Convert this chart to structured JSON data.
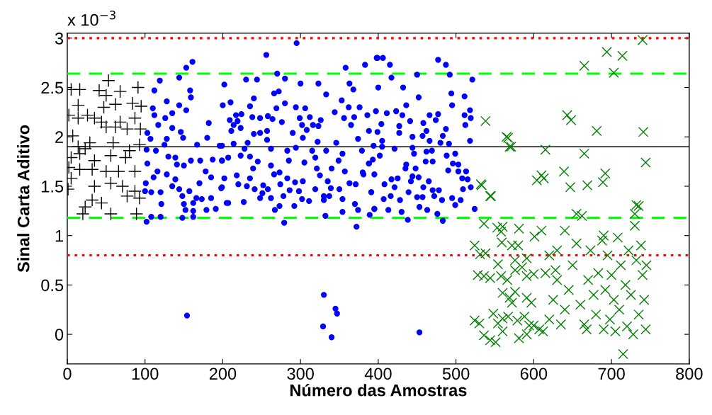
{
  "chart_data": {
    "type": "scatter",
    "xlabel": "Número das Amostras",
    "ylabel": "Sinal Carta Aditivo",
    "annotations": [
      "x 10$^{−3}$"
    ],
    "xlim": [
      0,
      800
    ],
    "xticks": [
      0,
      100,
      200,
      300,
      400,
      500,
      600,
      700,
      800
    ],
    "ylim": [
      -0.3,
      3.05
    ],
    "yticks": [
      0,
      0.5,
      1,
      1.5,
      2,
      2.5,
      3
    ],
    "grid": false,
    "legend": false,
    "ref_lines": [
      {
        "axis": "y",
        "value": 3.0,
        "color": "#ff0000",
        "line_style": "dotted"
      },
      {
        "axis": "y",
        "value": 0.8,
        "color": "#ff0000",
        "line_style": "dotted"
      },
      {
        "axis": "y",
        "value": 2.64,
        "color": "#00ff00",
        "line_style": "dashed"
      },
      {
        "axis": "y",
        "value": 1.18,
        "color": "#00ff00",
        "line_style": "dashed"
      },
      {
        "axis": "y",
        "value": 1.9,
        "color": "#000000",
        "line_style": "solid"
      }
    ],
    "series": [
      {
        "color": "#000000",
        "marker": "plus",
        "x": [
          53,
          5,
          16,
          41,
          68,
          91,
          50,
          14,
          47,
          62,
          84,
          95,
          2,
          26,
          35,
          44,
          68,
          87,
          14,
          50,
          62,
          77,
          94,
          7,
          29,
          14,
          23,
          59,
          80,
          93,
          5,
          16,
          35,
          56,
          75,
          2,
          16,
          32,
          50,
          66,
          87,
          5,
          35,
          56,
          71,
          87,
          1,
          32,
          44,
          23,
          56,
          20,
          89,
          77,
          93
        ],
        "values": [
          2.57,
          2.48,
          2.48,
          2.47,
          2.46,
          2.5,
          2.42,
          2.32,
          2.3,
          2.33,
          2.34,
          2.31,
          2.22,
          2.22,
          2.19,
          2.15,
          2.15,
          2.19,
          2.19,
          2.1,
          2.1,
          2.08,
          2.08,
          2.01,
          1.94,
          1.9,
          1.88,
          1.94,
          1.86,
          1.92,
          1.79,
          1.83,
          1.76,
          1.81,
          1.79,
          1.69,
          1.67,
          1.67,
          1.65,
          1.65,
          1.65,
          1.58,
          1.5,
          1.53,
          1.5,
          1.45,
          1.47,
          1.36,
          1.33,
          1.29,
          1.22,
          1.22,
          1.22,
          1.4,
          1.38
        ]
      },
      {
        "color": "#0000ff",
        "marker": "circle",
        "x": [
          161,
          153,
          144,
          119,
          112,
          158,
          159,
          128,
          110,
          144,
          153,
          112,
          126,
          135,
          117,
          135,
          182,
          103,
          146,
          128,
          149,
          107,
          125,
          167,
          180,
          196,
          102,
          114,
          130,
          139,
          159,
          171,
          187,
          199,
          103,
          141,
          150,
          116,
          178,
          111,
          128,
          185,
          101,
          139,
          135,
          144,
          170,
          199,
          108,
          120,
          157,
          166,
          148,
          173,
          185,
          100,
          121,
          150,
          162,
          152,
          162,
          179,
          191,
          205,
          102,
          108,
          120,
          148,
          162,
          295,
          256,
          399,
          383,
          358,
          270,
          280,
          230,
          244,
          300,
          323,
          363,
          202,
          368,
          272,
          333,
          266,
          240,
          353,
          210,
          280,
          200,
          235,
          269,
          294,
          306,
          362,
          376,
          344,
          217,
          224,
          238,
          248,
          258,
          299,
          312,
          326,
          356,
          369,
          386,
          209,
          219,
          264,
          276,
          214,
          302,
          316,
          323,
          365,
          223,
          211,
          257,
          308,
          388,
          240,
          290,
          248,
          374,
          232,
          214,
          257,
          303,
          322,
          346,
          199,
          228,
          262,
          283,
          294,
          315,
          333,
          354,
          379,
          207,
          223,
          235,
          199,
          245,
          285,
          305,
          319,
          349,
          388,
          239,
          262,
          321,
          340,
          357,
          380,
          218,
          266,
          273,
          325,
          202,
          235,
          283,
          293,
          303,
          335,
          220,
          231,
          252,
          274,
          363,
          371,
          198,
          241,
          258,
          286,
          298,
          319,
          339,
          350,
          391,
          251,
          278,
          330,
          337,
          248,
          262,
          302,
          311,
          330,
          354,
          207,
          227,
          273,
          267,
          292,
          370,
          354,
          374,
          395,
          332,
          389,
          279,
          372,
          398,
          406,
          415,
          477,
          487,
          417,
          450,
          492,
          521,
          400,
          432,
          452,
          494,
          511,
          495,
          436,
          397,
          411,
          423,
          431,
          466,
          477,
          511,
          518,
          519,
          441,
          458,
          474,
          512,
          404,
          427,
          462,
          487,
          399,
          427,
          444,
          457,
          483,
          518,
          466,
          480,
          491,
          405,
          394,
          405,
          421,
          444,
          462,
          469,
          499,
          446,
          402,
          488,
          393,
          461,
          470,
          388,
          496,
          436,
          435,
          448,
          503,
          490,
          503,
          513,
          381,
          395,
          444,
          452,
          417,
          425,
          465,
          508,
          515,
          408,
          421,
          442,
          458,
          470,
          478,
          509,
          519,
          391,
          439,
          416,
          450,
          457,
          472,
          495,
          407,
          428,
          482,
          506,
          524,
          395,
          413,
          430,
          453,
          463,
          476,
          438,
          483,
          499,
          453,
          154,
          330,
          329,
          345,
          347,
          340
        ],
        "values": [
          2.76,
          2.7,
          2.6,
          2.57,
          2.47,
          2.47,
          2.4,
          2.36,
          2.29,
          2.32,
          2.27,
          2.22,
          2.19,
          2.24,
          2.12,
          2.09,
          2.14,
          2.04,
          2.05,
          1.98,
          1.99,
          1.98,
          1.92,
          1.92,
          1.99,
          1.91,
          1.87,
          1.86,
          1.8,
          1.79,
          1.76,
          1.76,
          1.77,
          1.76,
          1.73,
          1.72,
          1.71,
          1.65,
          1.65,
          1.59,
          1.62,
          1.59,
          1.53,
          1.57,
          1.5,
          1.47,
          1.53,
          1.49,
          1.44,
          1.44,
          1.45,
          1.38,
          1.4,
          1.37,
          1.38,
          1.45,
          1.32,
          1.32,
          1.33,
          1.26,
          1.25,
          1.26,
          1.27,
          1.33,
          1.14,
          1.19,
          1.19,
          1.18,
          1.19,
          2.95,
          2.83,
          2.8,
          2.73,
          2.7,
          2.64,
          2.59,
          2.58,
          2.58,
          2.54,
          2.54,
          2.54,
          2.53,
          2.48,
          2.46,
          2.43,
          2.44,
          2.39,
          2.37,
          2.35,
          2.34,
          2.32,
          2.31,
          2.29,
          2.3,
          2.29,
          2.3,
          2.3,
          2.25,
          2.22,
          2.23,
          2.2,
          2.19,
          2.21,
          2.19,
          2.2,
          2.17,
          2.19,
          2.2,
          2.22,
          2.17,
          2.16,
          2.18,
          2.15,
          2.12,
          2.12,
          2.12,
          2.11,
          2.12,
          2.09,
          2.06,
          2.06,
          2.07,
          2.06,
          2.03,
          2.04,
          2.04,
          1.98,
          1.94,
          1.93,
          1.97,
          1.99,
          1.95,
          1.94,
          1.91,
          1.88,
          1.88,
          1.86,
          1.89,
          1.86,
          1.86,
          1.83,
          1.86,
          1.79,
          1.81,
          1.8,
          1.76,
          1.75,
          1.76,
          1.74,
          1.79,
          1.76,
          1.73,
          1.68,
          1.71,
          1.68,
          1.68,
          1.65,
          1.64,
          1.61,
          1.62,
          1.64,
          1.61,
          1.58,
          1.58,
          1.58,
          1.54,
          1.55,
          1.55,
          1.52,
          1.5,
          1.51,
          1.52,
          1.53,
          1.52,
          1.48,
          1.47,
          1.47,
          1.46,
          1.45,
          1.47,
          1.48,
          1.47,
          1.44,
          1.43,
          1.4,
          1.4,
          1.4,
          1.38,
          1.38,
          1.37,
          1.35,
          1.36,
          1.37,
          1.33,
          1.34,
          1.3,
          1.26,
          1.3,
          1.32,
          1.24,
          1.26,
          1.27,
          1.2,
          1.21,
          1.13,
          1.09,
          2.8,
          2.8,
          2.73,
          2.78,
          2.73,
          2.6,
          2.63,
          2.63,
          2.58,
          2.5,
          2.5,
          2.4,
          2.44,
          2.41,
          2.32,
          2.32,
          2.26,
          2.24,
          2.26,
          2.22,
          2.22,
          2.23,
          2.22,
          2.27,
          2.19,
          2.16,
          2.14,
          2.17,
          2.12,
          2.13,
          2.11,
          2.06,
          2.08,
          2.05,
          2.04,
          2.0,
          2.01,
          2.01,
          1.96,
          1.96,
          1.94,
          1.93,
          1.96,
          1.91,
          1.9,
          1.88,
          1.89,
          1.85,
          1.86,
          1.83,
          1.83,
          1.81,
          1.81,
          1.77,
          1.75,
          1.75,
          1.73,
          1.73,
          1.72,
          1.68,
          1.68,
          1.72,
          1.66,
          1.65,
          1.65,
          1.62,
          1.62,
          1.6,
          1.59,
          1.57,
          1.58,
          1.55,
          1.58,
          1.57,
          1.52,
          1.49,
          1.55,
          1.49,
          1.46,
          1.46,
          1.47,
          1.49,
          1.44,
          1.44,
          1.4,
          1.39,
          1.39,
          1.4,
          1.38,
          1.37,
          1.36,
          1.36,
          1.36,
          1.27,
          1.27,
          1.26,
          1.24,
          1.29,
          1.26,
          1.22,
          1.16,
          1.15,
          1.31,
          0.02,
          0.19,
          0.4,
          0.08,
          0.26,
          0.21,
          -0.03
        ]
      },
      {
        "color": "#008000",
        "marker": "cross",
        "x": [
          694,
          714,
          665,
          703,
          740,
          643,
          648,
          681,
          741,
          565,
          569,
          615,
          639,
          692,
          689,
          647,
          669,
          610,
          613,
          665,
          744,
          538,
          533,
          544,
          662,
          732,
          730,
          567,
          571,
          532,
          545,
          604,
          536,
          553,
          560,
          558,
          581,
          601,
          524,
          559,
          572,
          580,
          531,
          538,
          554,
          576,
          591,
          585,
          576,
          528,
          536,
          544,
          558,
          566,
          591,
          600,
          560,
          569,
          576,
          591,
          597,
          572,
          524,
          530,
          548,
          554,
          560,
          567,
          579,
          588,
          594,
          536,
          544,
          551,
          560,
          581,
          591,
          600,
          607,
          612,
          620,
          625,
          630,
          615,
          620,
          628,
          635,
          640,
          645,
          650,
          655,
          660,
          665,
          668,
          670,
          673,
          677,
          680,
          683,
          688,
          690,
          692,
          695,
          698,
          700,
          703,
          705,
          708,
          710,
          712,
          715,
          718,
          720,
          722,
          725,
          728,
          730,
          732,
          735,
          738,
          740,
          742,
          744,
          745,
          735,
          640,
          655,
          630,
          610,
          690
        ],
        "values": [
          2.86,
          2.82,
          2.72,
          2.65,
          2.98,
          2.22,
          2.17,
          2.06,
          2.05,
          2.0,
          1.9,
          1.87,
          1.65,
          1.63,
          1.54,
          1.49,
          1.51,
          1.61,
          1.58,
          1.83,
          1.74,
          2.16,
          1.51,
          1.4,
          1.2,
          1.31,
          1.22,
          1.99,
          1.9,
          1.52,
          1.4,
          1.56,
          1.12,
          1.08,
          1.09,
          1.04,
          1.07,
          0.99,
          0.9,
          0.93,
          0.9,
          0.9,
          0.81,
          0.82,
          0.71,
          0.75,
          0.77,
          0.68,
          0.65,
          0.6,
          0.59,
          0.57,
          0.59,
          0.55,
          0.59,
          0.61,
          0.42,
          0.37,
          0.43,
          0.37,
          0.32,
          0.32,
          0.14,
          0.11,
          0.21,
          0.11,
          0.16,
          0.18,
          0.14,
          0.18,
          0.09,
          -0.01,
          -0.06,
          -0.08,
          0.03,
          -0.04,
          0.0,
          0.09,
          0.05,
          0.03,
          0.15,
          0.35,
          0.55,
          0.62,
          0.8,
          0.65,
          0.1,
          0.25,
          0.45,
          0.7,
          0.92,
          0.3,
          0.1,
          0.05,
          0.55,
          0.85,
          0.4,
          0.2,
          0.62,
          0.95,
          0.05,
          0.45,
          0.8,
          0.15,
          0.6,
          0.35,
          0.03,
          0.98,
          0.25,
          0.7,
          -0.2,
          0.5,
          0.08,
          0.85,
          0.4,
          0.0,
          1.1,
          0.75,
          0.2,
          0.9,
          0.6,
          0.35,
          0.05,
          0.7,
          1.3,
          1.05,
          1.22,
          0.85,
          1.05,
          1.0
        ]
      }
    ]
  }
}
